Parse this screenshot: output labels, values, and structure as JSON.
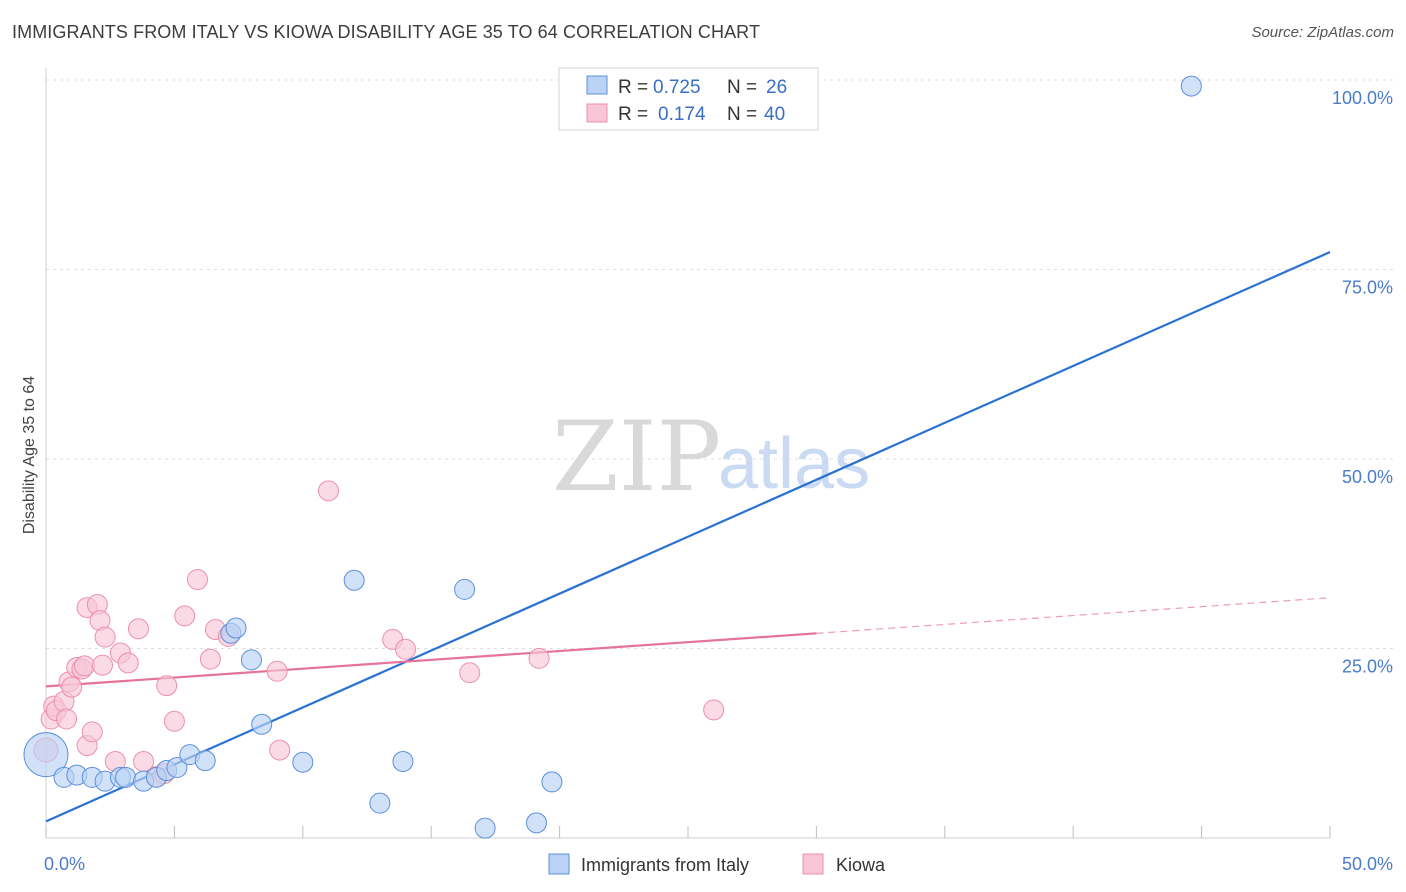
{
  "title": "IMMIGRANTS FROM ITALY VS KIOWA DISABILITY AGE 35 TO 64 CORRELATION CHART",
  "source": "Source: ZipAtlas.com",
  "watermark": {
    "zip": "ZIP",
    "atlas": "atlas"
  },
  "colors": {
    "blue": "#5b8fdb",
    "blue_fill": "#b9d2f5",
    "blue_line": "#2a72d1",
    "pink": "#ec8fae",
    "pink_fill": "#f8c6d6",
    "pink_line": "#e4729a",
    "grid": "#dddddd",
    "tick_text": "#4a7cc9"
  },
  "legend": {
    "rows": [
      {
        "r_label": "R =",
        "r_value": "0.725",
        "n_label": "N =",
        "n_value": "26",
        "series": "blue"
      },
      {
        "r_label": "R =",
        "r_value": "0.174",
        "n_label": "N =",
        "n_value": "40",
        "series": "pink"
      }
    ]
  },
  "chart_data": {
    "type": "scatter",
    "title": "IMMIGRANTS FROM ITALY VS KIOWA DISABILITY AGE 35 TO 64 CORRELATION CHART",
    "xlabel": "",
    "ylabel": "Disability Age 35 to 64",
    "xlim": [
      0,
      50
    ],
    "ylim": [
      0,
      100
    ],
    "x_tick_labels": [
      "0.0%",
      "50.0%"
    ],
    "y_ticks": [
      25,
      50,
      75,
      100
    ],
    "y_tick_labels": [
      "25.0%",
      "50.0%",
      "75.0%",
      "100.0%"
    ],
    "series": [
      {
        "name": "Immigrants from Italy",
        "color": "blue",
        "R": 0.725,
        "N": 26,
        "trend": {
          "x0": 0,
          "y0": 2.2,
          "x1": 50,
          "y1": 77.3,
          "dashed_to": null
        },
        "points": [
          [
            0.0,
            11.0,
            22
          ],
          [
            0.7,
            8.0,
            10
          ],
          [
            1.2,
            8.3,
            10
          ],
          [
            1.8,
            8.0,
            10
          ],
          [
            2.3,
            7.5,
            10
          ],
          [
            2.9,
            8.0,
            10
          ],
          [
            3.1,
            8.0,
            10
          ],
          [
            3.8,
            7.5,
            10
          ],
          [
            4.3,
            8.0,
            10
          ],
          [
            4.7,
            8.9,
            10
          ],
          [
            5.1,
            9.3,
            10
          ],
          [
            5.6,
            11.0,
            10
          ],
          [
            6.2,
            10.2,
            10
          ],
          [
            7.2,
            27.0,
            10
          ],
          [
            7.4,
            27.7,
            10
          ],
          [
            8.0,
            23.5,
            10
          ],
          [
            8.4,
            15.0,
            10
          ],
          [
            10.0,
            10.0,
            10
          ],
          [
            12.0,
            34.0,
            10
          ],
          [
            13.0,
            4.6,
            10
          ],
          [
            13.9,
            10.1,
            10
          ],
          [
            16.3,
            32.8,
            10
          ],
          [
            17.1,
            1.3,
            10
          ],
          [
            19.1,
            2.0,
            10
          ],
          [
            19.7,
            7.4,
            10
          ],
          [
            44.6,
            99.2,
            10
          ]
        ]
      },
      {
        "name": "Kiowa",
        "color": "pink",
        "R": 0.174,
        "N": 40,
        "trend": {
          "x0": 0,
          "y0": 20.0,
          "x1": 30,
          "y1": 27.0,
          "dashed_to": {
            "x": 50,
            "y": 31.7
          }
        },
        "points": [
          [
            0.0,
            11.6,
            12
          ],
          [
            0.2,
            15.7,
            10
          ],
          [
            0.3,
            17.4,
            10
          ],
          [
            0.4,
            16.8,
            10
          ],
          [
            0.7,
            18.0,
            10
          ],
          [
            0.8,
            15.7,
            10
          ],
          [
            0.9,
            20.6,
            10
          ],
          [
            1.0,
            19.9,
            10
          ],
          [
            1.2,
            22.5,
            10
          ],
          [
            1.4,
            22.3,
            10
          ],
          [
            1.5,
            22.7,
            10
          ],
          [
            1.6,
            12.2,
            10
          ],
          [
            1.6,
            30.4,
            10
          ],
          [
            1.8,
            14.0,
            10
          ],
          [
            2.0,
            30.8,
            10
          ],
          [
            2.1,
            28.7,
            10
          ],
          [
            2.2,
            22.8,
            10
          ],
          [
            2.3,
            26.5,
            10
          ],
          [
            2.7,
            10.1,
            10
          ],
          [
            2.9,
            24.4,
            10
          ],
          [
            3.2,
            23.1,
            10
          ],
          [
            3.6,
            27.6,
            10
          ],
          [
            3.8,
            10.1,
            10
          ],
          [
            4.3,
            8.1,
            10
          ],
          [
            4.6,
            8.5,
            10
          ],
          [
            4.7,
            20.1,
            10
          ],
          [
            5.0,
            15.4,
            10
          ],
          [
            5.4,
            29.3,
            10
          ],
          [
            5.9,
            34.1,
            10
          ],
          [
            6.4,
            23.6,
            10
          ],
          [
            6.6,
            27.5,
            10
          ],
          [
            7.1,
            26.6,
            10
          ],
          [
            9.0,
            22.0,
            10
          ],
          [
            9.1,
            11.6,
            10
          ],
          [
            11.0,
            45.8,
            10
          ],
          [
            13.5,
            26.2,
            10
          ],
          [
            14.0,
            24.9,
            10
          ],
          [
            16.5,
            21.8,
            10
          ],
          [
            19.2,
            23.7,
            10
          ],
          [
            26.0,
            16.9,
            10
          ]
        ]
      }
    ]
  },
  "bottom_legend": {
    "items": [
      {
        "label": "Immigrants from Italy",
        "series": "blue"
      },
      {
        "label": "Kiowa",
        "series": "pink"
      }
    ]
  }
}
